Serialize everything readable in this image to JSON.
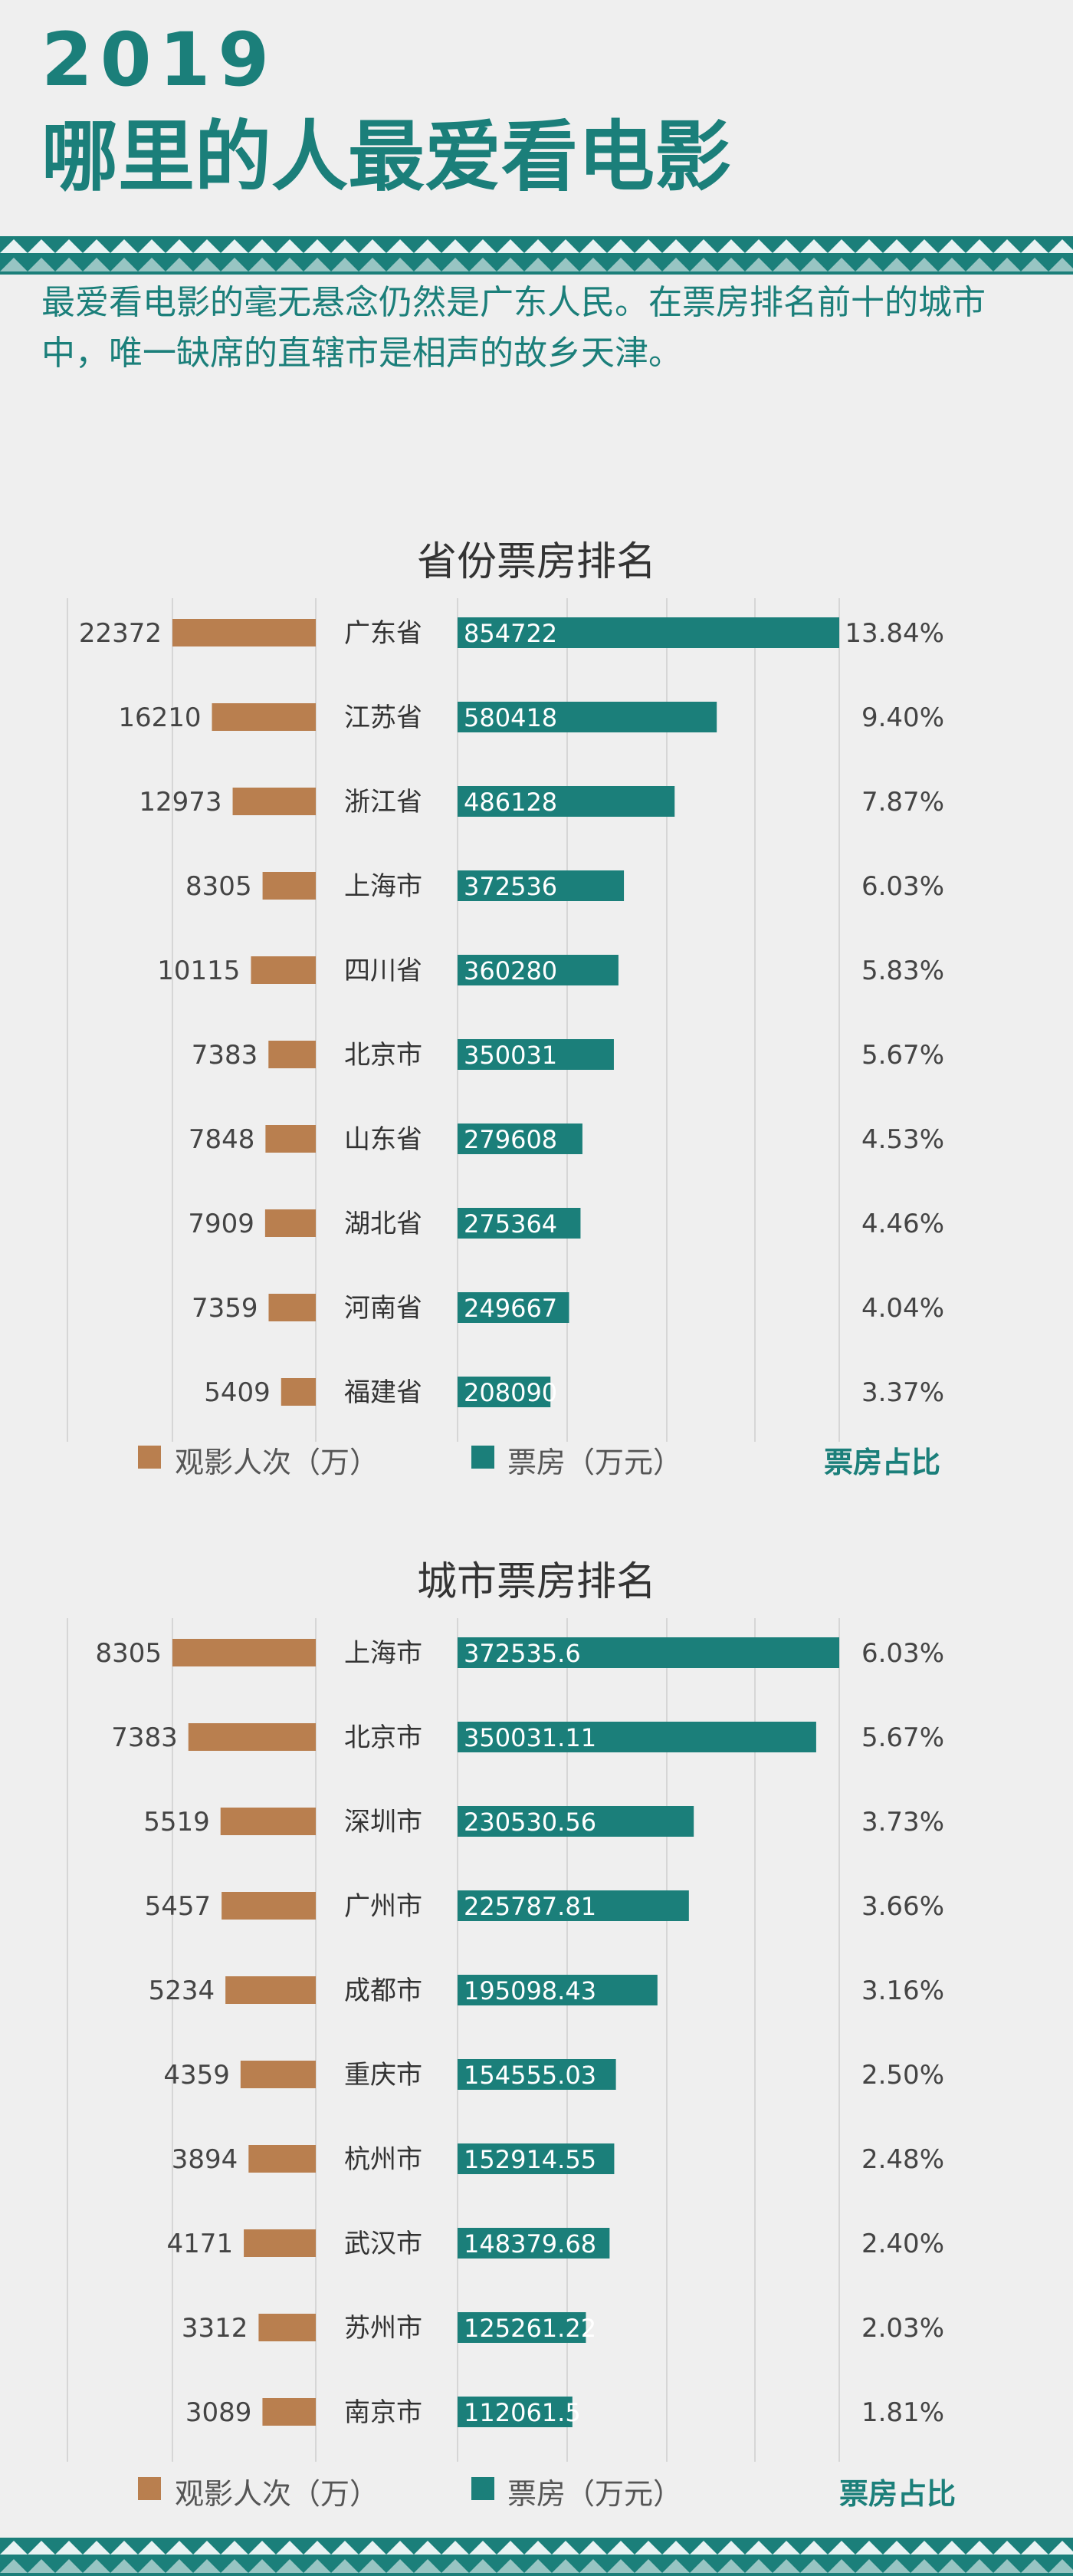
{
  "header": {
    "year": "2019",
    "title": "哪里的人最爱看电影",
    "intro": "最爱看电影的毫无悬念仍然是广东人民。在票房排名前十的城市中，唯一缺席的直辖市是相声的故乡天津。"
  },
  "colors": {
    "teal": "#1b7f7a",
    "brown": "#b97f4f",
    "gridline": "#d6d6d6"
  },
  "legends": {
    "province": {
      "attendance": "观影人次（万）",
      "boxoffice": "票房（万元）",
      "share": "票房占比"
    },
    "city": {
      "attendance": "观影人次（万）",
      "boxoffice": "票房（万元）",
      "share": "票房占比"
    }
  },
  "chart_data": [
    {
      "type": "bar",
      "title": "省份票房排名",
      "categories": [
        "广东省",
        "江苏省",
        "浙江省",
        "上海市",
        "四川省",
        "北京市",
        "山东省",
        "湖北省",
        "河南省",
        "福建省"
      ],
      "attendance": [
        "22372",
        "16210",
        "12973",
        "8305",
        "10115",
        "7383",
        "7848",
        "7909",
        "7359",
        "5409"
      ],
      "boxoffice": [
        "854722",
        "580418",
        "486128",
        "372536",
        "360280",
        "350031",
        "279608",
        "275364",
        "249667",
        "208090"
      ],
      "share": [
        "13.84%",
        "9.40%",
        "7.87%",
        "6.03%",
        "5.83%",
        "5.67%",
        "4.53%",
        "4.46%",
        "4.04%",
        "3.37%"
      ]
    },
    {
      "type": "bar",
      "title": "城市票房排名",
      "categories": [
        "上海市",
        "北京市",
        "深圳市",
        "广州市",
        "成都市",
        "重庆市",
        "杭州市",
        "武汉市",
        "苏州市",
        "南京市"
      ],
      "attendance": [
        "8305",
        "7383",
        "5519",
        "5457",
        "5234",
        "4359",
        "3894",
        "4171",
        "3312",
        "3089"
      ],
      "boxoffice": [
        "372535.6",
        "350031.11",
        "230530.56",
        "225787.81",
        "195098.43",
        "154555.03",
        "152914.55",
        "148379.68",
        "125261.22",
        "112061.5"
      ],
      "share": [
        "6.03%",
        "5.67%",
        "3.73%",
        "3.66%",
        "3.16%",
        "2.50%",
        "2.48%",
        "2.40%",
        "2.03%",
        "1.81%"
      ]
    }
  ]
}
